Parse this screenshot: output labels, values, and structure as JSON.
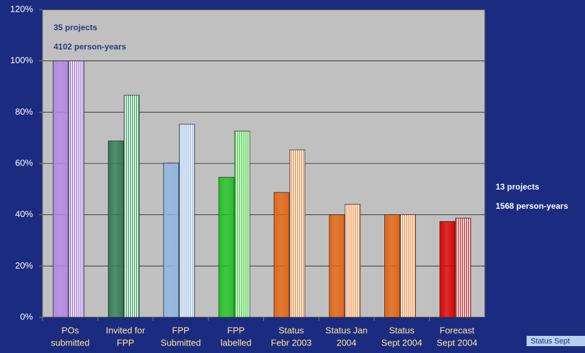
{
  "chart_data": {
    "type": "bar",
    "categories": [
      [
        "POs",
        "submitted"
      ],
      [
        "Invited for",
        "FPP"
      ],
      [
        "FPP",
        "Submitted"
      ],
      [
        "FPP",
        "labelled"
      ],
      [
        "Status",
        "Febr 2003"
      ],
      [
        "Status Jan",
        "2004"
      ],
      [
        "Status",
        "Sept 2004"
      ],
      [
        "Forecast",
        "Sept 2004"
      ]
    ],
    "series": [
      {
        "values": [
          100,
          68.8,
          60.2,
          54.6,
          48.7,
          40,
          40,
          37.4
        ],
        "colors": [
          "#b487e8",
          "#2f7d55",
          "#8fb6e2",
          "#1fc41f",
          "#e6640f",
          "#e6640f",
          "#e6640f",
          "#e00000"
        ],
        "style": "solid"
      },
      {
        "values": [
          100,
          86.6,
          75.3,
          72.6,
          65.3,
          44.1,
          40,
          38.7
        ],
        "colors": [
          "#9a6cd0",
          "#3aa060",
          "#8fb6e2",
          "#2fcf2f",
          "#f08a40",
          "#f08a40",
          "#f08a40",
          "#e02020"
        ],
        "style": "striped"
      }
    ],
    "ylim": [
      0,
      120
    ],
    "yticks": [
      {
        "value": 0,
        "label": "0%"
      },
      {
        "value": 20,
        "label": "20%"
      },
      {
        "value": 40,
        "label": "40%"
      },
      {
        "value": 60,
        "label": "60%"
      },
      {
        "value": 80,
        "label": "80%"
      },
      {
        "value": 100,
        "label": "100%"
      },
      {
        "value": 120,
        "label": "120%"
      }
    ],
    "grid": true,
    "annotations": [
      "35 projects",
      "4102 person-years",
      "13 projects",
      "1568 person-years"
    ],
    "footer": "Status Sept"
  }
}
